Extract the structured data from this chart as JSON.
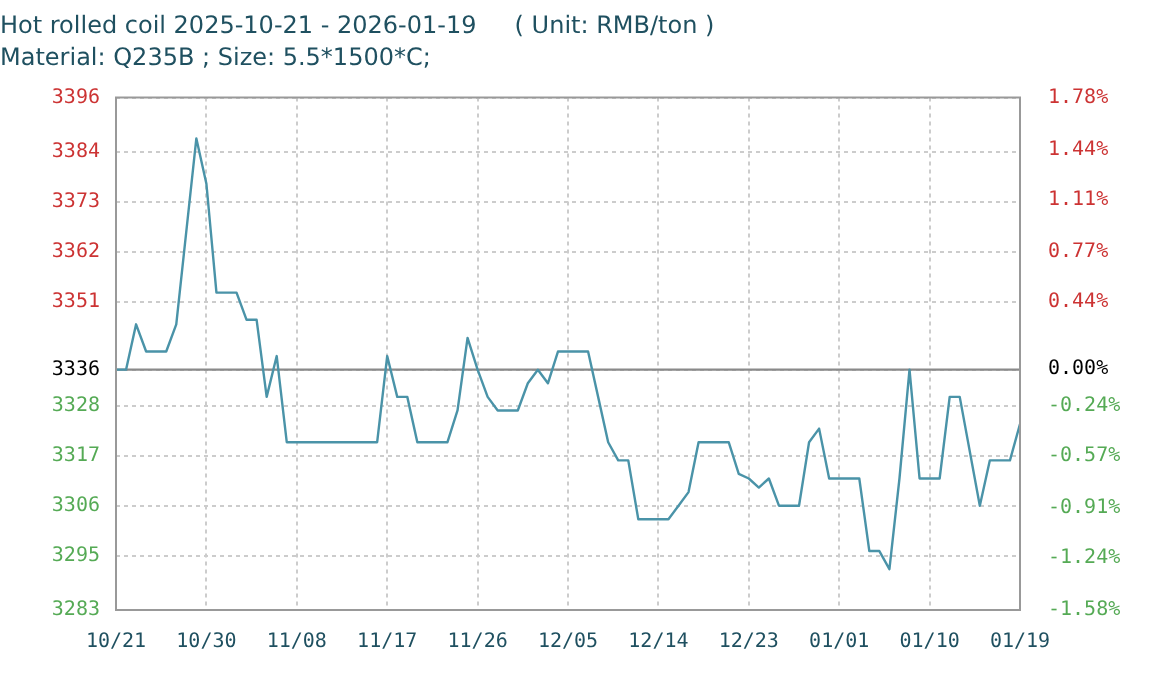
{
  "chart_data": {
    "type": "line",
    "title": "Hot rolled coil 2025-10-21 - 2026-01-19     ( Unit: RMB/ton )",
    "subtitle": "Material: Q235B ; Size: 5.5*1500*C;",
    "x": [
      "2025-10-21",
      "2025-10-22",
      "2025-10-23",
      "2025-10-24",
      "2025-10-26",
      "2025-10-27",
      "2025-10-29",
      "2025-10-30",
      "2025-10-31",
      "2025-11-02",
      "2025-11-03",
      "2025-11-04",
      "2025-11-05",
      "2025-11-06",
      "2025-11-07",
      "2025-11-16",
      "2025-11-17",
      "2025-11-18",
      "2025-11-19",
      "2025-11-20",
      "2025-11-23",
      "2025-11-24",
      "2025-11-25",
      "2025-11-26",
      "2025-11-27",
      "2025-11-28",
      "2025-11-30",
      "2025-12-01",
      "2025-12-02",
      "2025-12-03",
      "2025-12-04",
      "2025-12-07",
      "2025-12-08",
      "2025-12-09",
      "2025-12-10",
      "2025-12-11",
      "2025-12-12",
      "2025-12-15",
      "2025-12-16",
      "2025-12-17",
      "2025-12-18",
      "2025-12-21",
      "2025-12-22",
      "2025-12-23",
      "2025-12-24",
      "2025-12-25",
      "2025-12-26",
      "2025-12-28",
      "2025-12-29",
      "2025-12-30",
      "2025-12-31",
      "2026-01-03",
      "2026-01-04",
      "2026-01-05",
      "2026-01-06",
      "2026-01-07",
      "2026-01-08",
      "2026-01-09",
      "2026-01-11",
      "2026-01-12",
      "2026-01-13",
      "2026-01-15",
      "2026-01-16",
      "2026-01-18",
      "2026-01-19"
    ],
    "series": [
      {
        "color": "#4a93a8",
        "values": [
          3336,
          3336,
          3346,
          3340,
          3340,
          3346,
          3387,
          3377,
          3353,
          3353,
          3347,
          3347,
          3330,
          3339,
          3320,
          3320,
          3339,
          3330,
          3330,
          3320,
          3320,
          3327,
          3343,
          3336,
          3330,
          3327,
          3327,
          3333,
          3336,
          3333,
          3340,
          3340,
          3330,
          3320,
          3316,
          3316,
          3303,
          3303,
          3306,
          3309,
          3320,
          3320,
          3313,
          3312,
          3310,
          3312,
          3306,
          3306,
          3320,
          3323,
          3312,
          3312,
          3296,
          3296,
          3292,
          3312,
          3336,
          3312,
          3312,
          3330,
          3330,
          3306,
          3316,
          3316,
          3324
        ]
      }
    ],
    "xlim": [
      "2025-10-21",
      "2026-01-19"
    ],
    "xticks": [
      {
        "value": "2025-10-21",
        "label": "10/21"
      },
      {
        "value": "2025-10-30",
        "label": "10/30"
      },
      {
        "value": "2025-11-08",
        "label": "11/08"
      },
      {
        "value": "2025-11-17",
        "label": "11/17"
      },
      {
        "value": "2025-11-26",
        "label": "11/26"
      },
      {
        "value": "2025-12-05",
        "label": "12/05"
      },
      {
        "value": "2025-12-14",
        "label": "12/14"
      },
      {
        "value": "2025-12-23",
        "label": "12/23"
      },
      {
        "value": "2026-01-01",
        "label": "01/01"
      },
      {
        "value": "2026-01-10",
        "label": "01/10"
      },
      {
        "value": "2026-01-19",
        "label": "01/19"
      }
    ],
    "ylim": [
      3283,
      3396
    ],
    "yticks": [
      3283,
      3295,
      3306,
      3317,
      3328,
      3336,
      3351,
      3362,
      3373,
      3384,
      3396
    ],
    "y2lim": [
      -1.58,
      1.78
    ],
    "y2ticks": [
      {
        "value": -1.58,
        "label": "-1.58%"
      },
      {
        "value": -1.24,
        "label": "-1.24%"
      },
      {
        "value": -0.91,
        "label": "-0.91%"
      },
      {
        "value": -0.57,
        "label": "-0.57%"
      },
      {
        "value": -0.24,
        "label": "-0.24%"
      },
      {
        "value": 0,
        "label": "0.00%"
      },
      {
        "value": 0.44,
        "label": "0.44%"
      },
      {
        "value": 0.77,
        "label": "0.77%"
      },
      {
        "value": 1.11,
        "label": "1.11%"
      },
      {
        "value": 1.44,
        "label": "1.44%"
      },
      {
        "value": 1.78,
        "label": "1.78%"
      }
    ],
    "ref_lines": [
      {
        "axis": "y",
        "value": 3336,
        "color": "#8a8a8a",
        "line_style": "solid"
      }
    ],
    "grid": true,
    "legend": false,
    "marker": "none",
    "line_style": "solid"
  }
}
